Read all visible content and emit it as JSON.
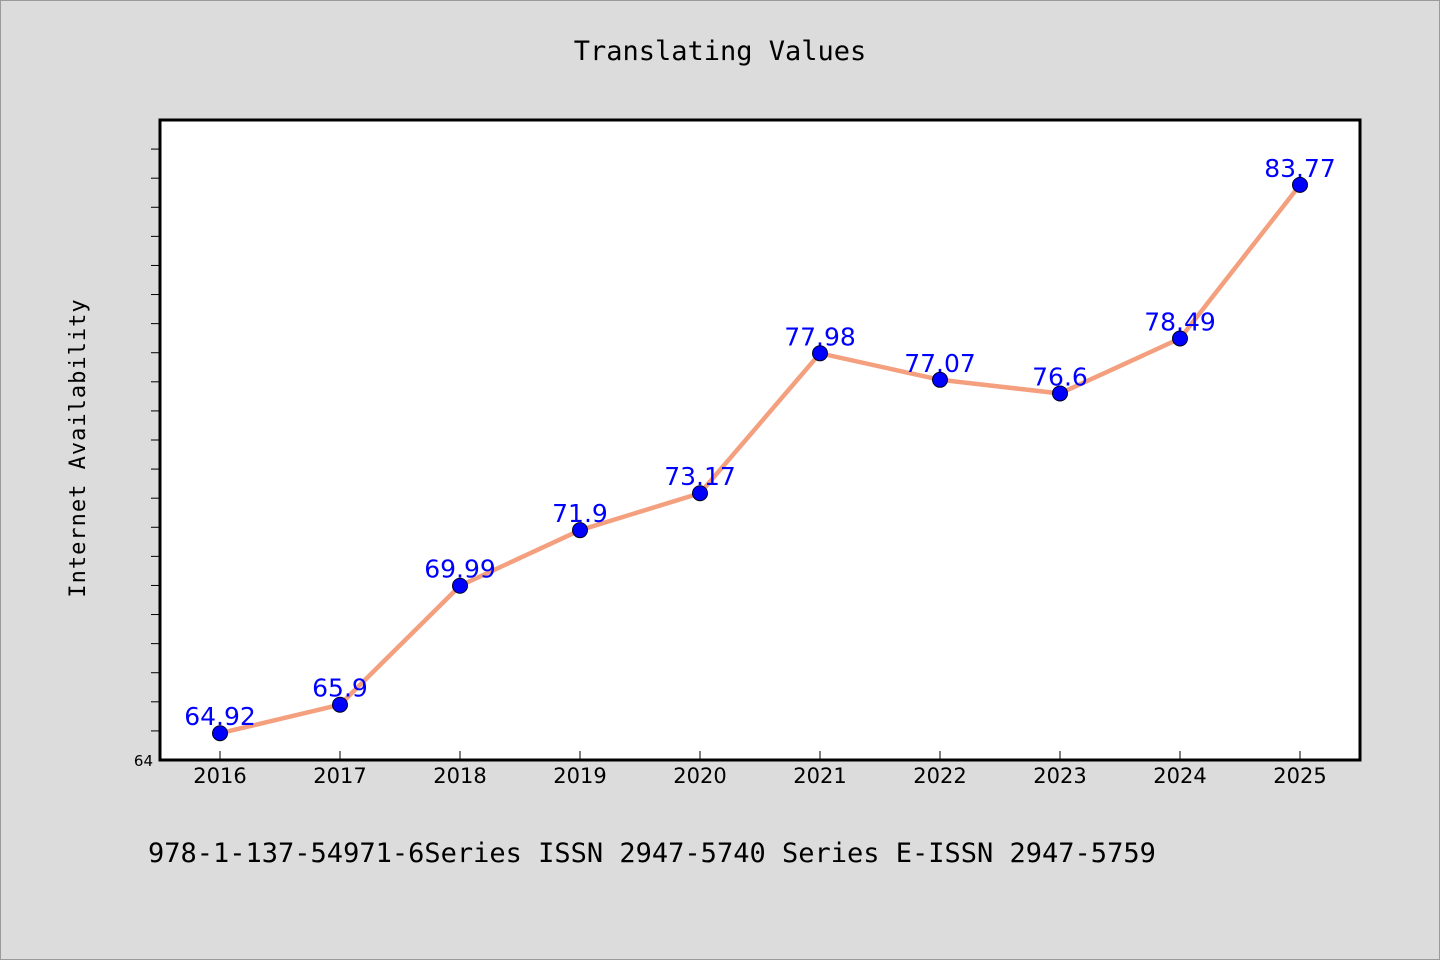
{
  "footer": "978-1-137-54971-6Series ISSN 2947-5740 Series E-ISSN 2947-5759",
  "colors": {
    "background": "#dcdcdc",
    "plot_background": "#ffffff",
    "line": "#f4a07f",
    "marker": "#0000ff",
    "data_label": "#0000ff"
  },
  "chart_data": {
    "type": "line",
    "title": "Translating Values",
    "xlabel": "",
    "ylabel": "Internet Availability",
    "categories": [
      "2016",
      "2017",
      "2018",
      "2019",
      "2020",
      "2021",
      "2022",
      "2023",
      "2024",
      "2025"
    ],
    "series": [
      {
        "values": [
          64.92,
          65.9,
          69.99,
          71.9,
          73.17,
          77.98,
          77.07,
          76.6,
          78.49,
          83.77
        ],
        "labels": [
          "64.92",
          "65.9",
          "69.99",
          "71.9",
          "73.17",
          "77.98",
          "77.07",
          "76.6",
          "78.49",
          "83.77"
        ]
      }
    ],
    "y_tick_labels": [
      "64"
    ],
    "ylim": [
      64,
      86
    ],
    "y_minor_step": 1,
    "grid": false,
    "legend": "none"
  }
}
